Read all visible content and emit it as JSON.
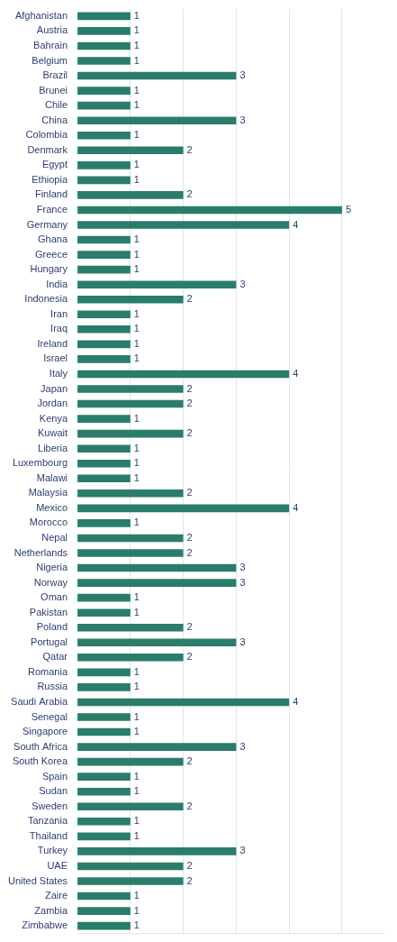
{
  "chart_data": {
    "type": "bar",
    "orientation": "horizontal",
    "categories": [
      "Afghanistan",
      "Austria",
      "Bahrain",
      "Belgium",
      "Brazil",
      "Brunei",
      "Chile",
      "China",
      "Colombia",
      "Denmark",
      "Egypt",
      "Ethiopia",
      "Finland",
      "France",
      "Germany",
      "Ghana",
      "Greece",
      "Hungary",
      "India",
      "Indonesia",
      "Iran",
      "Iraq",
      "Ireland",
      "Israel",
      "Italy",
      "Japan",
      "Jordan",
      "Kenya",
      "Kuwait",
      "Liberia",
      "Luxembourg",
      "Malawi",
      "Malaysia",
      "Mexico",
      "Morocco",
      "Nepal",
      "Netherlands",
      "Nigeria",
      "Norway",
      "Oman",
      "Pakistan",
      "Poland",
      "Portugal",
      "Qatar",
      "Romania",
      "Russia",
      "Saudi Arabia",
      "Senegal",
      "Singapore",
      "South Africa",
      "South Korea",
      "Spain",
      "Sudan",
      "Sweden",
      "Tanzania",
      "Thailand",
      "Turkey",
      "UAE",
      "United States",
      "Zaire",
      "Zambia",
      "Zimbabwe"
    ],
    "values": [
      1,
      1,
      1,
      1,
      3,
      1,
      1,
      3,
      1,
      2,
      1,
      1,
      2,
      5,
      4,
      1,
      1,
      1,
      3,
      2,
      1,
      1,
      1,
      1,
      4,
      2,
      2,
      1,
      2,
      1,
      1,
      1,
      2,
      4,
      1,
      2,
      2,
      3,
      3,
      1,
      1,
      2,
      3,
      2,
      1,
      1,
      4,
      1,
      1,
      3,
      2,
      1,
      1,
      2,
      1,
      1,
      3,
      2,
      2,
      1,
      1,
      1
    ],
    "color": "#2a7d6b",
    "xlim": [
      0,
      5.8
    ],
    "xticks": [
      1,
      2,
      3,
      4,
      5
    ],
    "grid": true,
    "data_labels": true,
    "tick_labels": "y"
  }
}
